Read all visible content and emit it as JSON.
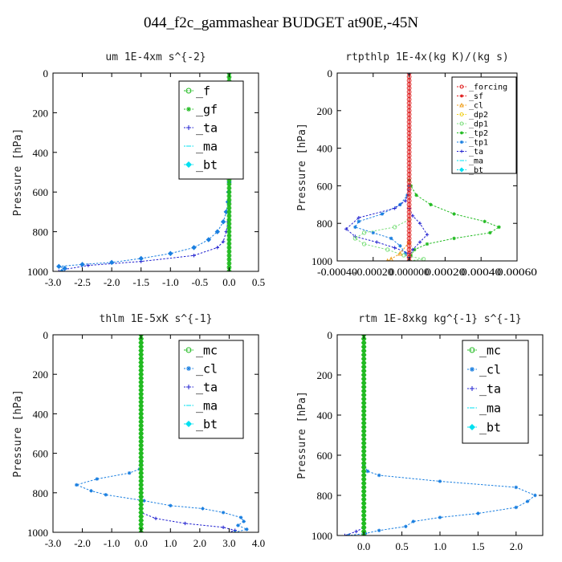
{
  "figure": {
    "title": "044_f2c_gammashear  BUDGET at90E,-45N"
  },
  "colors": {
    "green": "#22bb22",
    "blue": "#1a7fe0",
    "navy": "#2020d0",
    "cyan": "#00e0f0",
    "red": "#e02020",
    "orange": "#f0a020",
    "lightgreen": "#80e080"
  },
  "chart_data": [
    {
      "id": "um",
      "type": "line",
      "title": "um   1E-4xm s^{-2}",
      "ylabel": "Pressure [hPa]",
      "xlim": [
        -3.0,
        0.5
      ],
      "ylim": [
        1000,
        0
      ],
      "xticks": [
        -3.0,
        -2.5,
        -2.0,
        -1.5,
        -1.0,
        -0.5,
        0.0,
        0.5
      ],
      "xtick_labels": [
        "-3.0",
        "-2.5",
        "-2.0",
        "-1.5",
        "-1.0",
        "-0.5",
        "0.0",
        "0.5"
      ],
      "yticks": [
        0,
        200,
        400,
        600,
        800,
        1000
      ],
      "ytick_labels": [
        "0",
        "200",
        "400",
        "600",
        "800",
        "1000"
      ],
      "legend": {
        "placement": "top-right",
        "font_size": 15,
        "entries": [
          "_f",
          "_gf",
          "_ta",
          "_ma",
          "_bt"
        ]
      },
      "series": [
        {
          "name": "_ta",
          "color": "#2020d0",
          "marker": "plus",
          "points": [
            [
              0,
              0
            ],
            [
              0,
              650
            ],
            [
              0,
              700
            ],
            [
              -0.02,
              750
            ],
            [
              -0.05,
              800
            ],
            [
              -0.1,
              850
            ],
            [
              -0.2,
              880
            ],
            [
              -0.6,
              920
            ],
            [
              -1.5,
              950
            ],
            [
              -2.4,
              970
            ],
            [
              -2.8,
              990
            ],
            [
              -2.9,
              1000
            ]
          ]
        },
        {
          "name": "_bt",
          "color": "#1a7fe0",
          "marker": "diamond",
          "points": [
            [
              0,
              0
            ],
            [
              0,
              550
            ],
            [
              -0.01,
              600
            ],
            [
              -0.02,
              650
            ],
            [
              -0.05,
              700
            ],
            [
              -0.1,
              750
            ],
            [
              -0.2,
              800
            ],
            [
              -0.35,
              840
            ],
            [
              -0.6,
              880
            ],
            [
              -1.0,
              910
            ],
            [
              -1.5,
              935
            ],
            [
              -2.0,
              955
            ],
            [
              -2.5,
              965
            ],
            [
              -2.9,
              975
            ],
            [
              -2.8,
              985
            ],
            [
              -2.85,
              1000
            ]
          ]
        },
        {
          "name": "_f",
          "color": "#22bb22",
          "marker": "circle",
          "points": [
            [
              0,
              0
            ],
            [
              0,
              1000
            ]
          ]
        },
        {
          "name": "_gf",
          "color": "#22bb22",
          "marker": "star",
          "points": [
            [
              0,
              0
            ],
            [
              0,
              1000
            ]
          ]
        }
      ]
    },
    {
      "id": "rtpthlp",
      "type": "line",
      "title": "rtpthlp   1E-4x(kg K)/(kg s)",
      "ylabel": "Pressure [hPa]",
      "xlim": [
        -0.0004,
        0.0006
      ],
      "ylim": [
        1000,
        0
      ],
      "xticks": [
        -0.0004,
        -0.0002,
        0.0,
        0.0002,
        0.0004,
        0.0006
      ],
      "xtick_labels": [
        "-0.00040",
        "-0.00020",
        "0.000000",
        "0.00020",
        "0.00040",
        "0.00060"
      ],
      "yticks": [
        0,
        200,
        400,
        600,
        800,
        1000
      ],
      "ytick_labels": [
        "0",
        "200",
        "400",
        "600",
        "800",
        "1000"
      ],
      "legend": {
        "placement": "top-right",
        "font_size": 10,
        "entries": [
          "_forcing",
          "_sf",
          "_cl",
          "_dp2",
          "_dp1",
          "_tp2",
          "_tp1",
          "_ta",
          "_ma",
          "_bt"
        ]
      },
      "series": [
        {
          "name": "_tp2",
          "color": "#22bb22",
          "marker": "star",
          "points": [
            [
              0,
              0
            ],
            [
              0,
              570
            ],
            [
              1e-05,
              600
            ],
            [
              4e-05,
              650
            ],
            [
              0.00012,
              700
            ],
            [
              0.00025,
              750
            ],
            [
              0.00042,
              790
            ],
            [
              0.0005,
              820
            ],
            [
              0.00045,
              850
            ],
            [
              0.00025,
              880
            ],
            [
              0.0001,
              910
            ],
            [
              3e-05,
              940
            ],
            [
              1e-05,
              970
            ],
            [
              0,
              1000
            ]
          ]
        },
        {
          "name": "_tp1",
          "color": "#1a7fe0",
          "marker": "star",
          "points": [
            [
              0,
              0
            ],
            [
              0,
              600
            ],
            [
              -1e-05,
              650
            ],
            [
              -5e-05,
              700
            ],
            [
              -0.00015,
              750
            ],
            [
              -0.00028,
              790
            ],
            [
              -0.0003,
              820
            ],
            [
              -0.0002,
              850
            ],
            [
              -0.0001,
              880
            ],
            [
              -5e-05,
              920
            ],
            [
              -2e-05,
              960
            ],
            [
              0,
              1000
            ]
          ]
        },
        {
          "name": "_ta",
          "color": "#2020d0",
          "marker": "plus",
          "points": [
            [
              0,
              0
            ],
            [
              0,
              620
            ],
            [
              -2e-05,
              680
            ],
            [
              -8e-05,
              720
            ],
            [
              -0.00028,
              770
            ],
            [
              -0.00035,
              830
            ],
            [
              -0.0003,
              870
            ],
            [
              -0.00018,
              900
            ],
            [
              -8e-05,
              930
            ],
            [
              0,
              960
            ],
            [
              0,
              1000
            ]
          ]
        },
        {
          "name": "_ta_lower",
          "color": "#2020d0",
          "marker": "plus",
          "points": [
            [
              0,
              720
            ],
            [
              2e-05,
              760
            ],
            [
              6e-05,
              800
            ],
            [
              0.0001,
              860
            ],
            [
              6e-05,
              900
            ],
            [
              2e-05,
              940
            ],
            [
              0,
              980
            ]
          ]
        },
        {
          "name": "_dp1",
          "color": "#80e080",
          "marker": "circle",
          "points": [
            [
              0,
              780
            ],
            [
              -8e-05,
              820
            ],
            [
              -0.00025,
              850
            ],
            [
              -0.0003,
              880
            ],
            [
              -0.00025,
              910
            ],
            [
              -0.00012,
              940
            ],
            [
              -3e-05,
              970
            ],
            [
              8e-05,
              990
            ],
            [
              0,
              1000
            ]
          ]
        },
        {
          "name": "_cl",
          "color": "#f0a020",
          "marker": "triangle",
          "points": [
            [
              0,
              900
            ],
            [
              -5e-05,
              960
            ],
            [
              -0.0001,
              990
            ],
            [
              -0.00012,
              1000
            ]
          ]
        },
        {
          "name": "_forcing",
          "color": "#e02020",
          "marker": "circle",
          "points": [
            [
              0,
              0
            ],
            [
              0,
              1000
            ]
          ]
        }
      ]
    },
    {
      "id": "thlm",
      "type": "line",
      "title": "thlm   1E-5xK s^{-1}",
      "ylabel": "Pressure [hPa]",
      "xlim": [
        -3.0,
        4.0
      ],
      "ylim": [
        1000,
        0
      ],
      "xticks": [
        -3.0,
        -2.0,
        -1.0,
        0.0,
        1.0,
        2.0,
        3.0,
        4.0
      ],
      "xtick_labels": [
        "-3.0",
        "-2.0",
        "-1.0",
        "0.0",
        "1.0",
        "2.0",
        "3.0",
        "4.0"
      ],
      "yticks": [
        0,
        200,
        400,
        600,
        800,
        1000
      ],
      "ytick_labels": [
        "0",
        "200",
        "400",
        "600",
        "800",
        "1000"
      ],
      "legend": {
        "placement": "top-right",
        "font_size": 15,
        "entries": [
          "_mc",
          "_cl",
          "_ta",
          "_ma",
          "_bt"
        ]
      },
      "series": [
        {
          "name": "_ta",
          "color": "#2020d0",
          "marker": "plus",
          "points": [
            [
              0,
              0
            ],
            [
              0,
              900
            ],
            [
              0.5,
              930
            ],
            [
              1.5,
              955
            ],
            [
              2.8,
              975
            ],
            [
              3.2,
              990
            ],
            [
              3.0,
              1000
            ]
          ]
        },
        {
          "name": "_cl",
          "color": "#1a7fe0",
          "marker": "star",
          "points": [
            [
              0,
              0
            ],
            [
              0,
              650
            ],
            [
              -0.05,
              680
            ],
            [
              -0.4,
              700
            ],
            [
              -1.5,
              730
            ],
            [
              -2.2,
              760
            ],
            [
              -1.7,
              790
            ],
            [
              -1.2,
              810
            ],
            [
              0.1,
              840
            ],
            [
              1.0,
              865
            ],
            [
              2.1,
              880
            ],
            [
              2.8,
              900
            ],
            [
              3.4,
              925
            ],
            [
              3.5,
              945
            ],
            [
              3.3,
              965
            ],
            [
              3.6,
              985
            ],
            [
              3.2,
              1000
            ]
          ]
        },
        {
          "name": "_mc",
          "color": "#22bb22",
          "marker": "circle",
          "points": [
            [
              0,
              0
            ],
            [
              0,
              1000
            ]
          ]
        },
        {
          "name": "_bt",
          "color": "#22bb22",
          "marker": "diamond",
          "points": [
            [
              0,
              0
            ],
            [
              0,
              1000
            ]
          ]
        }
      ]
    },
    {
      "id": "rtm",
      "type": "line",
      "title": "rtm   1E-8xkg kg^{-1} s^{-1}",
      "ylabel": "Pressure [hPa]",
      "xlim": [
        -0.35,
        2.35
      ],
      "ylim": [
        1000,
        0
      ],
      "xticks": [
        0.0,
        0.5,
        1.0,
        1.5,
        2.0
      ],
      "xtick_labels": [
        "0.0",
        "0.5",
        "1.0",
        "1.5",
        "2.0"
      ],
      "yticks": [
        0,
        200,
        400,
        600,
        800,
        1000
      ],
      "ytick_labels": [
        "0",
        "200",
        "400",
        "600",
        "800",
        "1000"
      ],
      "legend": {
        "placement": "top-right",
        "font_size": 15,
        "entries": [
          "_mc",
          "_cl",
          "_ta",
          "_ma",
          "_bt"
        ]
      },
      "series": [
        {
          "name": "_ta",
          "color": "#2020d0",
          "marker": "plus",
          "points": [
            [
              0,
              0
            ],
            [
              0,
              960
            ],
            [
              -0.1,
              980
            ],
            [
              -0.25,
              1000
            ]
          ]
        },
        {
          "name": "_cl",
          "color": "#1a7fe0",
          "marker": "star",
          "points": [
            [
              0,
              0
            ],
            [
              0,
              650
            ],
            [
              0.05,
              680
            ],
            [
              0.2,
              700
            ],
            [
              1.0,
              730
            ],
            [
              2.0,
              760
            ],
            [
              2.25,
              800
            ],
            [
              2.15,
              830
            ],
            [
              2.0,
              860
            ],
            [
              1.5,
              890
            ],
            [
              1.0,
              910
            ],
            [
              0.65,
              930
            ],
            [
              0.55,
              955
            ],
            [
              0.2,
              975
            ],
            [
              0.02,
              990
            ],
            [
              -0.2,
              1000
            ]
          ]
        },
        {
          "name": "_mc",
          "color": "#22bb22",
          "marker": "circle",
          "points": [
            [
              0,
              0
            ],
            [
              0,
              1000
            ]
          ]
        },
        {
          "name": "_bt",
          "color": "#22bb22",
          "marker": "diamond",
          "points": [
            [
              0,
              0
            ],
            [
              0,
              1000
            ]
          ]
        }
      ]
    }
  ]
}
